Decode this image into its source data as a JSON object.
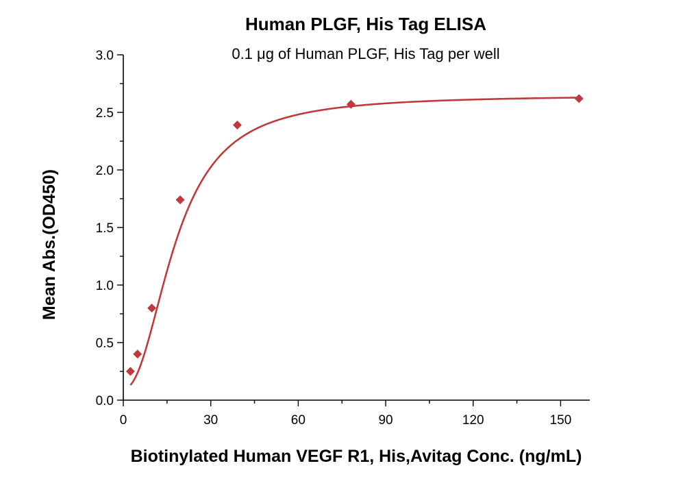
{
  "chart_data": {
    "type": "scatter",
    "title": "Human PLGF, His Tag ELISA",
    "subtitle": "0.1 μg of Human PLGF, His Tag per well",
    "xlabel": "Biotinylated Human VEGF R1, His,Avitag Conc. (ng/mL)",
    "ylabel": "Mean Abs.(OD450)",
    "xlim": [
      0,
      160
    ],
    "ylim": [
      0,
      3.0
    ],
    "x_ticks": [
      "0",
      "30",
      "60",
      "90",
      "120",
      "150"
    ],
    "x_tick_values": [
      0,
      30,
      60,
      90,
      120,
      150
    ],
    "y_ticks": [
      "0.0",
      "0.5",
      "1.0",
      "1.5",
      "2.0",
      "2.5",
      "3.0"
    ],
    "y_tick_values": [
      0,
      0.5,
      1.0,
      1.5,
      2.0,
      2.5,
      3.0
    ],
    "grid": false,
    "series": [
      {
        "marker": "diamond",
        "color": "#C0393B",
        "x": [
          2.44,
          4.88,
          9.77,
          19.5,
          39.1,
          78.1,
          156.3
        ],
        "y": [
          0.25,
          0.4,
          0.8,
          1.74,
          2.39,
          2.57,
          2.62
        ]
      }
    ],
    "fit_curve": {
      "color": "#C0393B",
      "model": "4PL",
      "bottom": 0.1,
      "top": 2.65,
      "ec50": 18.0,
      "hill": 2.2
    }
  }
}
